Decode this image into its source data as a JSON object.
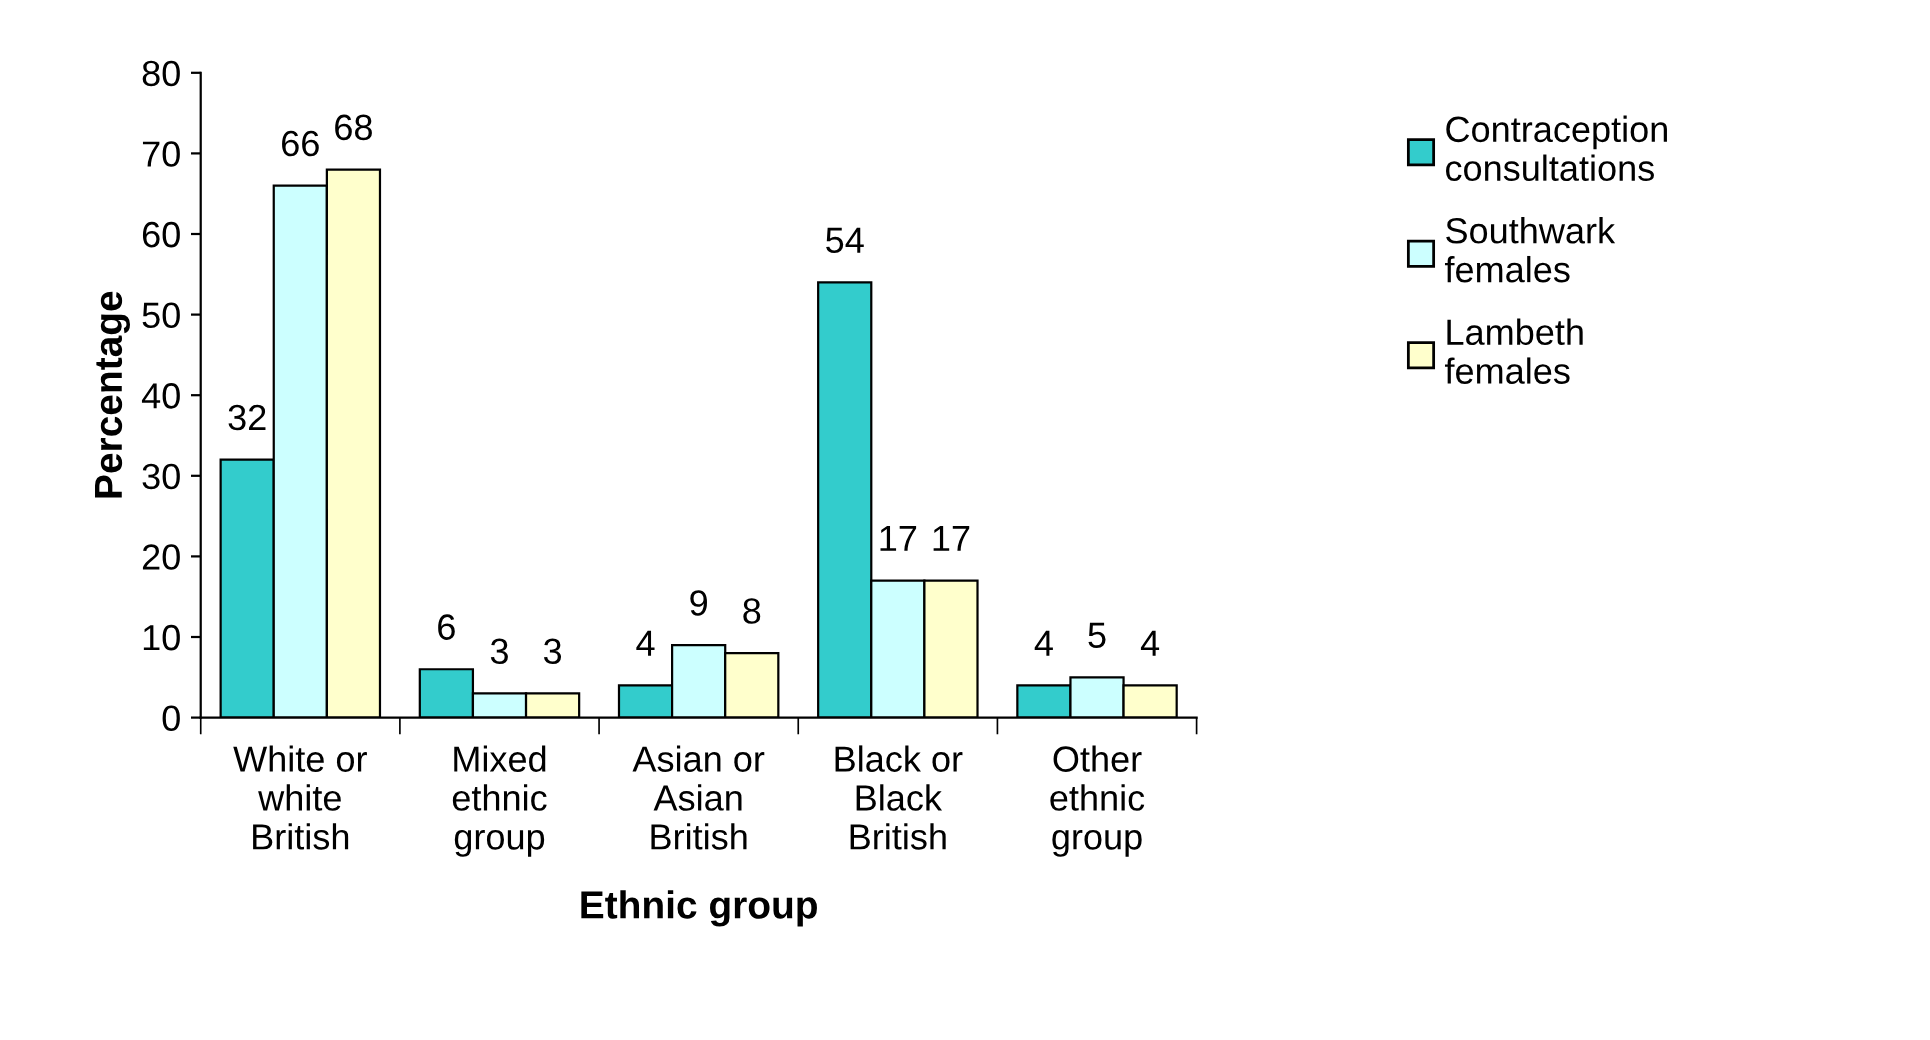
{
  "chart_data": {
    "type": "bar",
    "xlabel": "Ethnic group",
    "ylabel": "Percentage",
    "categories": [
      "White or white British",
      "Mixed ethnic group",
      "Asian or Asian British",
      "Black or Black British",
      "Other ethnic group"
    ],
    "series": [
      {
        "name": "Contraception consultations",
        "color": "#33cccc",
        "values": [
          32,
          6,
          4,
          54,
          4
        ]
      },
      {
        "name": "Southwark females",
        "color": "#ccffff",
        "values": [
          66,
          3,
          9,
          17,
          5
        ]
      },
      {
        "name": "Lambeth females",
        "color": "#ffffcc",
        "values": [
          68,
          3,
          8,
          17,
          4
        ]
      }
    ],
    "ylim": [
      0,
      80
    ],
    "yticks": [
      0,
      10,
      20,
      30,
      40,
      50,
      60,
      70,
      80
    ],
    "grid": false,
    "legend": "right",
    "data_labels": true
  }
}
